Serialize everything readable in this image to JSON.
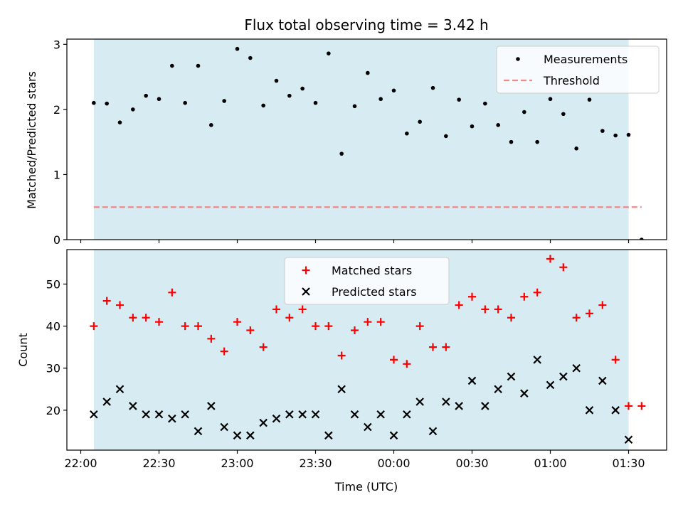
{
  "chart_data": [
    {
      "type": "scatter",
      "title": "Flux total observing time = 3.42 h",
      "ylabel": "Matched/Predicted stars",
      "xlabel": "",
      "ylim": [
        0,
        3.08
      ],
      "yticks": [
        0,
        1,
        2,
        3
      ],
      "observing_window": [
        "22:05",
        "01:30"
      ],
      "legend": {
        "placement": "top-right",
        "entries": [
          "Measurements",
          "Threshold"
        ]
      },
      "series": [
        {
          "name": "Measurements",
          "marker": "dot",
          "color": "#000000",
          "x": [
            "22:05",
            "22:10",
            "22:15",
            "22:20",
            "22:25",
            "22:30",
            "22:35",
            "22:40",
            "22:45",
            "22:50",
            "22:55",
            "23:00",
            "23:05",
            "23:10",
            "23:15",
            "23:20",
            "23:25",
            "23:30",
            "23:35",
            "23:40",
            "23:45",
            "23:50",
            "23:55",
            "00:00",
            "00:05",
            "00:10",
            "00:15",
            "00:20",
            "00:25",
            "00:30",
            "00:35",
            "00:40",
            "00:45",
            "00:50",
            "00:55",
            "01:00",
            "01:05",
            "01:10",
            "01:15",
            "01:20",
            "01:25",
            "01:30",
            "01:35"
          ],
          "y": [
            2.1,
            2.09,
            1.8,
            2.0,
            2.21,
            2.16,
            2.67,
            2.1,
            2.67,
            1.76,
            2.13,
            2.93,
            2.79,
            2.06,
            2.44,
            2.21,
            2.32,
            2.1,
            2.86,
            1.32,
            2.05,
            2.56,
            2.16,
            2.29,
            1.63,
            1.81,
            2.33,
            1.59,
            2.15,
            1.74,
            2.09,
            1.76,
            1.5,
            1.96,
            1.5,
            2.16,
            1.93,
            1.4,
            2.15,
            1.67,
            1.6,
            1.61,
            0.0
          ]
        },
        {
          "name": "Threshold",
          "style": "dashed",
          "color": "#f08080",
          "x": [
            "22:05",
            "01:35"
          ],
          "y": [
            0.5,
            0.5
          ]
        }
      ]
    },
    {
      "type": "scatter",
      "title": "",
      "ylabel": "Count",
      "xlabel": "Time (UTC)",
      "ylim": [
        10.5,
        58.2
      ],
      "yticks": [
        20,
        30,
        40,
        50
      ],
      "xticks": [
        "22:00",
        "22:30",
        "23:00",
        "23:30",
        "00:00",
        "00:30",
        "01:00",
        "01:30"
      ],
      "observing_window": [
        "22:05",
        "01:30"
      ],
      "legend": {
        "placement": "top-center",
        "entries": [
          "Matched stars",
          "Predicted stars"
        ]
      },
      "series": [
        {
          "name": "Matched stars",
          "marker": "plus",
          "color": "#ff0000",
          "x": [
            "22:05",
            "22:10",
            "22:15",
            "22:20",
            "22:25",
            "22:30",
            "22:35",
            "22:40",
            "22:45",
            "22:50",
            "22:55",
            "23:00",
            "23:05",
            "23:10",
            "23:15",
            "23:20",
            "23:25",
            "23:30",
            "23:35",
            "23:40",
            "23:45",
            "23:50",
            "23:55",
            "00:00",
            "00:05",
            "00:10",
            "00:15",
            "00:20",
            "00:25",
            "00:30",
            "00:35",
            "00:40",
            "00:45",
            "00:50",
            "00:55",
            "01:00",
            "01:05",
            "01:10",
            "01:15",
            "01:20",
            "01:25",
            "01:30",
            "01:35"
          ],
          "y": [
            40,
            46,
            45,
            42,
            42,
            41,
            48,
            40,
            40,
            37,
            34,
            41,
            39,
            35,
            44,
            42,
            44,
            40,
            40,
            33,
            39,
            41,
            41,
            32,
            31,
            40,
            35,
            35,
            45,
            47,
            44,
            44,
            42,
            47,
            48,
            56,
            54,
            42,
            43,
            45,
            32,
            21,
            21
          ]
        },
        {
          "name": "Predicted stars",
          "marker": "x",
          "color": "#000000",
          "x": [
            "22:05",
            "22:10",
            "22:15",
            "22:20",
            "22:25",
            "22:30",
            "22:35",
            "22:40",
            "22:45",
            "22:50",
            "22:55",
            "23:00",
            "23:05",
            "23:10",
            "23:15",
            "23:20",
            "23:25",
            "23:30",
            "23:35",
            "23:40",
            "23:45",
            "23:50",
            "23:55",
            "00:00",
            "00:05",
            "00:10",
            "00:15",
            "00:20",
            "00:25",
            "00:30",
            "00:35",
            "00:40",
            "00:45",
            "00:50",
            "00:55",
            "01:00",
            "01:05",
            "01:10",
            "01:15",
            "01:20",
            "01:25",
            "01:30"
          ],
          "y": [
            19,
            22,
            25,
            21,
            19,
            19,
            18,
            19,
            15,
            21,
            16,
            14,
            14,
            17,
            18,
            19,
            19,
            19,
            14,
            25,
            19,
            16,
            19,
            14,
            19,
            22,
            15,
            22,
            21,
            27,
            21,
            25,
            28,
            24,
            32,
            26,
            28,
            30,
            20,
            27,
            20,
            13
          ]
        }
      ]
    }
  ]
}
